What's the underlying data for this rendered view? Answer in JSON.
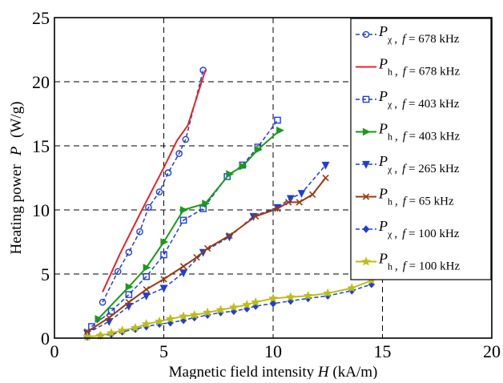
{
  "chart_data": {
    "type": "line",
    "xlabel": "Magnetic field intensity",
    "xlabel_var": "H",
    "xlabel_unit": "(kA/m)",
    "ylabel": "Heating power",
    "ylabel_var": "P",
    "ylabel_unit": "(W/g)",
    "xlim": [
      0,
      20
    ],
    "ylim": [
      0,
      25
    ],
    "x_ticks": [
      0,
      5,
      10,
      15,
      20
    ],
    "y_ticks": [
      0,
      5,
      10,
      15,
      20,
      25
    ],
    "x_tick_labels": [
      "0",
      "5",
      "10",
      "15",
      "20"
    ],
    "y_tick_labels": [
      "0",
      "5",
      "10",
      "15",
      "20",
      "25"
    ],
    "grid": "dashed",
    "legend_position": "top-right",
    "series": [
      {
        "name": "P",
        "sub": "χ",
        "f_label": "f",
        "freq": " = 678 kHz",
        "color": "#1f3fd6",
        "linestyle": "dashed",
        "marker": "circle",
        "x": [
          2.2,
          2.9,
          3.4,
          3.9,
          4.3,
          4.8,
          5.2,
          5.7,
          6.0,
          6.8
        ],
        "y": [
          2.8,
          5.2,
          6.7,
          8.3,
          10.2,
          11.4,
          12.9,
          14.4,
          15.5,
          20.9
        ]
      },
      {
        "name": "P",
        "sub": "h",
        "f_label": "f",
        "freq": " = 678 kHz",
        "color": "#e3252c",
        "linestyle": "solid",
        "marker": "none",
        "x": [
          2.2,
          3.0,
          4.0,
          5.0,
          5.6,
          6.1,
          6.9
        ],
        "y": [
          3.6,
          6.6,
          10.0,
          13.3,
          15.4,
          16.6,
          20.9
        ]
      },
      {
        "name": "P",
        "sub": "χ",
        "f_label": "f",
        "freq": " = 403 kHz",
        "color": "#1f3fd6",
        "linestyle": "dashed",
        "marker": "square",
        "x": [
          1.7,
          2.6,
          3.4,
          4.2,
          5.0,
          5.9,
          6.8,
          7.9,
          8.6,
          9.3,
          10.2
        ],
        "y": [
          0.9,
          2.1,
          3.4,
          4.8,
          6.5,
          9.2,
          10.1,
          12.6,
          13.5,
          14.9,
          17.0
        ]
      },
      {
        "name": "P",
        "sub": "h",
        "f_label": "f",
        "freq": " = 403 kHz",
        "color": "#1a9b1a",
        "linestyle": "solid",
        "marker": "triangle-right",
        "x": [
          2.0,
          3.4,
          4.2,
          5.0,
          5.9,
          6.9,
          8.0,
          8.6,
          9.3,
          10.3
        ],
        "y": [
          1.5,
          4.0,
          5.5,
          7.5,
          10.0,
          10.5,
          12.8,
          13.4,
          14.7,
          16.2
        ]
      },
      {
        "name": "P",
        "sub": "χ",
        "f_label": "f",
        "freq": " = 265 kHz",
        "color": "#1f3fd6",
        "linestyle": "dashed",
        "marker": "triangle-down",
        "x": [
          1.5,
          2.5,
          3.4,
          4.2,
          5.0,
          5.9,
          6.8,
          8.0,
          9.1,
          10.2,
          10.8,
          11.3,
          12.4
        ],
        "y": [
          0.4,
          1.3,
          2.5,
          3.3,
          3.9,
          5.1,
          6.7,
          7.9,
          9.5,
          10.2,
          10.9,
          11.3,
          13.5
        ]
      },
      {
        "name": "P",
        "sub": "h",
        "f_label": "f",
        "freq": " = 65 kHz",
        "color": "#9b3a11",
        "linestyle": "solid",
        "marker": "x",
        "x": [
          1.5,
          2.5,
          3.4,
          4.2,
          5.0,
          5.9,
          6.5,
          7.0,
          8.0,
          9.2,
          10.2,
          10.7,
          11.2,
          11.8,
          12.4
        ],
        "y": [
          0.5,
          1.6,
          2.8,
          3.8,
          4.6,
          5.6,
          6.3,
          7.0,
          8.0,
          9.5,
          10.1,
          10.6,
          10.6,
          11.2,
          12.5
        ]
      },
      {
        "name": "P",
        "sub": "χ",
        "f_label": "f",
        "freq": " = 100 kHz",
        "color": "#1f3fd6",
        "linestyle": "dashed",
        "marker": "diamond",
        "x": [
          1.5,
          2.1,
          2.6,
          3.1,
          3.7,
          4.2,
          4.8,
          5.3,
          5.9,
          6.4,
          7.0,
          7.6,
          8.2,
          8.8,
          9.2,
          10.0,
          10.8,
          11.6,
          12.5,
          13.6,
          14.5
        ],
        "y": [
          0.1,
          0.2,
          0.3,
          0.5,
          0.7,
          0.9,
          1.1,
          1.2,
          1.4,
          1.6,
          1.8,
          2.0,
          2.1,
          2.3,
          2.5,
          2.7,
          2.9,
          3.1,
          3.3,
          3.7,
          4.2
        ]
      },
      {
        "name": "P",
        "sub": "h",
        "f_label": "f",
        "freq": " = 100 kHz",
        "color": "#bdbd19",
        "linestyle": "solid",
        "marker": "star",
        "x": [
          1.5,
          2.1,
          2.6,
          3.1,
          3.7,
          4.2,
          4.8,
          5.3,
          5.9,
          6.4,
          7.0,
          7.6,
          8.2,
          8.8,
          9.2,
          10.0,
          10.8,
          11.6,
          12.5,
          13.6,
          14.5
        ],
        "y": [
          0.1,
          0.2,
          0.4,
          0.6,
          0.8,
          1.1,
          1.3,
          1.5,
          1.7,
          1.8,
          2.0,
          2.2,
          2.4,
          2.6,
          2.8,
          3.1,
          3.2,
          3.3,
          3.5,
          3.9,
          4.5
        ]
      }
    ]
  }
}
